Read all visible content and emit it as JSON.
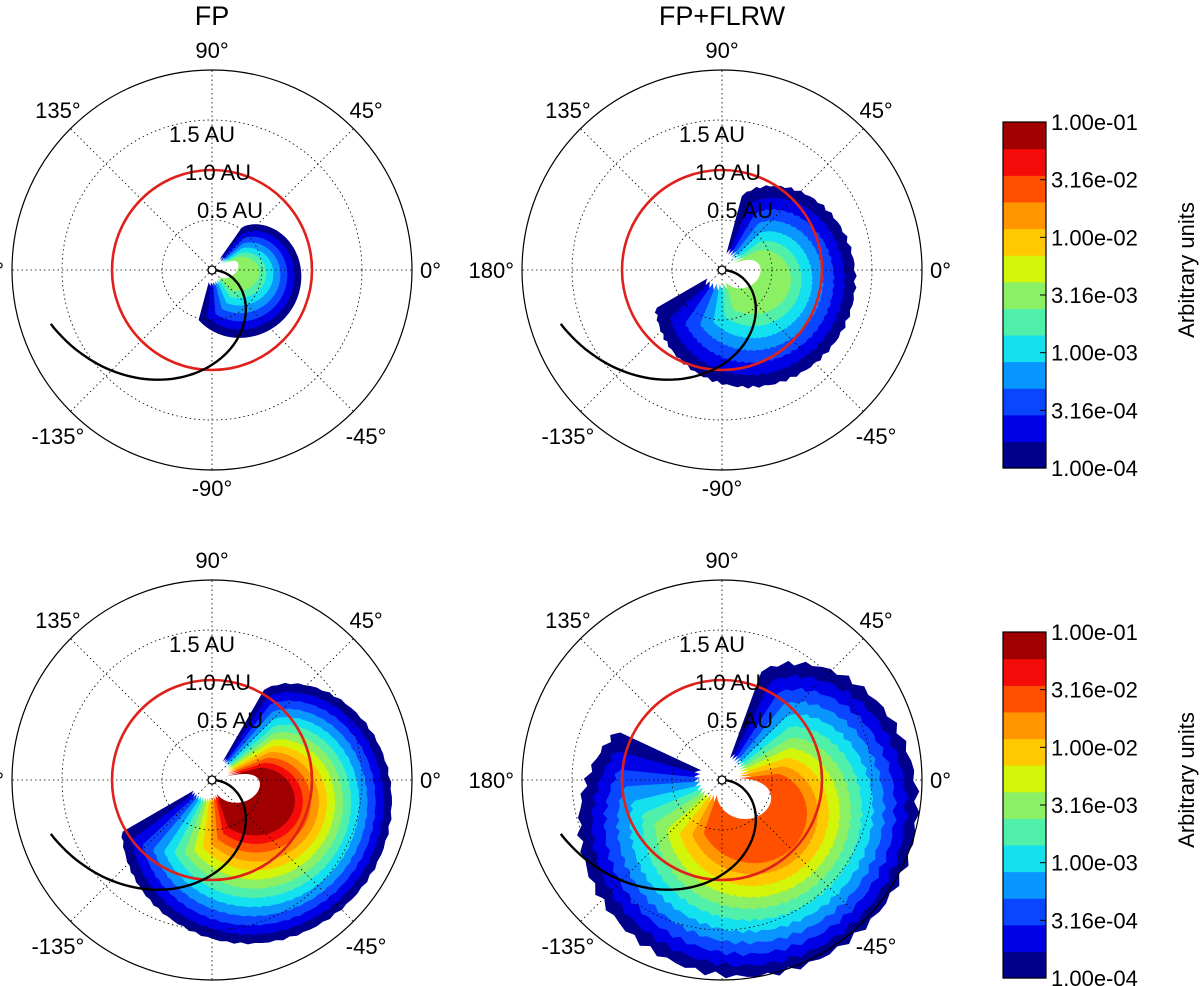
{
  "chart_data": {
    "type": "polar-contour",
    "columns": [
      "FP",
      "FP+FLRW"
    ],
    "angle_ticks": [
      "90°",
      "45°",
      "0°",
      "-45°",
      "-90°",
      "-135°",
      "180°",
      "135°"
    ],
    "radial_labels": [
      "0.5 AU",
      "1.0 AU",
      "1.5 AU"
    ],
    "radial_ticks_au": [
      0.5,
      1.0,
      1.5
    ],
    "r_max_au": 2.0,
    "earth_orbit_au": 1.0,
    "spiral_field_line": {
      "description": "Parker spiral from Sun to 1.7 AU"
    },
    "colorbar": {
      "label": "Arbitrary units",
      "tick_labels": [
        "1.00e-01",
        "3.16e-02",
        "1.00e-02",
        "3.16e-03",
        "1.00e-03",
        "3.16e-04",
        "1.00e-04"
      ],
      "levels": [
        0.0001,
        0.0001778,
        0.0003162,
        0.0005623,
        0.001,
        0.001778,
        0.003162,
        0.005623,
        0.01,
        0.01778,
        0.03162,
        0.05623,
        0.1
      ],
      "colors": [
        "#00008c",
        "#0000e6",
        "#0a46ff",
        "#0a96ff",
        "#14e1f0",
        "#50f0aa",
        "#8cf064",
        "#d2f50a",
        "#ffc800",
        "#ff9600",
        "#ff5000",
        "#f50a0a",
        "#a00000"
      ]
    },
    "panels": [
      {
        "row": 0,
        "column": "FP",
        "extent": "narrow",
        "peak": "3.16e-03"
      },
      {
        "row": 0,
        "column": "FP+FLRW",
        "extent": "medium",
        "peak": "3.16e-03"
      },
      {
        "row": 1,
        "column": "FP",
        "extent": "wide",
        "peak": "1.00e-01"
      },
      {
        "row": 1,
        "column": "FP+FLRW",
        "extent": "widest",
        "peak": "3.16e-02"
      }
    ]
  }
}
